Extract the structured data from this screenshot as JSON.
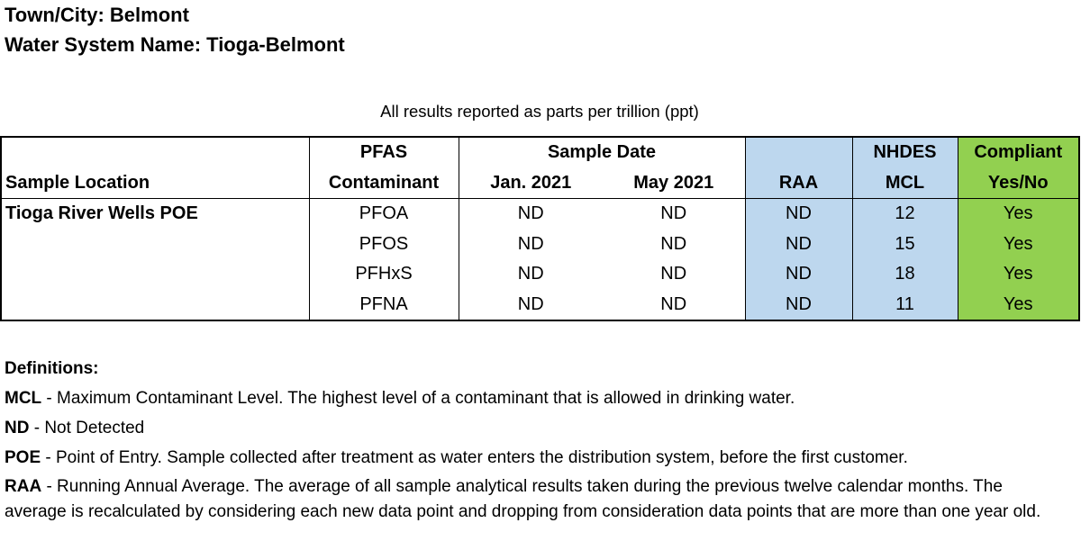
{
  "header": {
    "town": "Town/City: Belmont",
    "system": "Water System Name: Tioga-Belmont"
  },
  "note": "All results reported as parts per trillion (ppt)",
  "table": {
    "headers": {
      "pfas_top": "PFAS",
      "pfas_bottom": "Contaminant",
      "sample_date": "Sample Date",
      "jan": "Jan. 2021",
      "may": "May 2021",
      "location": "Sample Location",
      "raa": "RAA",
      "nhdes_top": "NHDES",
      "nhdes_bottom": "MCL",
      "compliant_top": "Compliant",
      "compliant_bottom": "Yes/No"
    },
    "location": "Tioga River Wells POE",
    "rows": [
      {
        "contaminant": "PFOA",
        "jan": "ND",
        "may": "ND",
        "raa": "ND",
        "mcl": "12",
        "compliant": "Yes"
      },
      {
        "contaminant": "PFOS",
        "jan": "ND",
        "may": "ND",
        "raa": "ND",
        "mcl": "15",
        "compliant": "Yes"
      },
      {
        "contaminant": "PFHxS",
        "jan": "ND",
        "may": "ND",
        "raa": "ND",
        "mcl": "18",
        "compliant": "Yes"
      },
      {
        "contaminant": "PFNA",
        "jan": "ND",
        "may": "ND",
        "raa": "ND",
        "mcl": "11",
        "compliant": "Yes"
      }
    ],
    "colors": {
      "raa_bg": "#bdd7ee",
      "compliant_bg": "#92d050"
    }
  },
  "definitions": {
    "title": "Definitions:",
    "items": [
      {
        "term": "MCL",
        "text": " - Maximum Contaminant Level. The highest level of a contaminant that is allowed in drinking water."
      },
      {
        "term": "ND",
        "text": " - Not Detected"
      },
      {
        "term": "POE",
        "text": " - Point of Entry.  Sample collected after treatment as water enters the distribution system, before the first customer."
      },
      {
        "term": "RAA",
        "text": " - Running Annual Average. The average of all sample analytical results taken during the previous twelve calendar months. The average is recalculated by considering each new data point and dropping from consideration data points that are more than one year old."
      }
    ]
  }
}
